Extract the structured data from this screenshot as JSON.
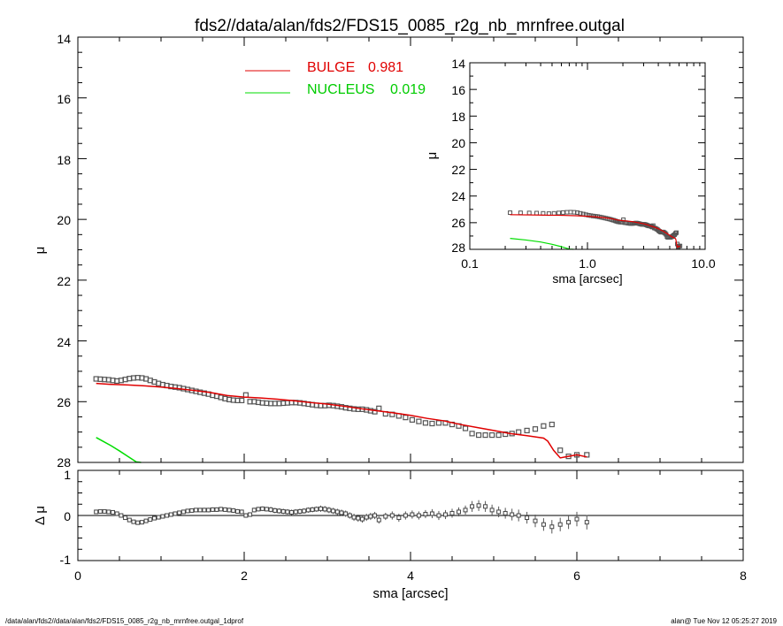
{
  "figure": {
    "title": "fds2//data/alan/fds2/FDS15_0085_r2g_nb_mrnfree.outgal",
    "footer_left": "/data/alan/fds2//data/alan/fds2/FDS15_0085_r2g_nb_mrnfree.outgal_1dprof",
    "footer_right": "alan@  Tue Nov 12 05:25:27 2019"
  },
  "colors": {
    "bulge": "#e00000",
    "nucleus": "#00dd00",
    "data": "#555555",
    "axis": "#000000"
  },
  "chart_data": [
    {
      "id": "main",
      "type": "line",
      "xlabel": "sma [arcsec]",
      "ylabel": "μ",
      "xlim": [
        0,
        8
      ],
      "ylim": [
        28,
        14
      ],
      "xticks": [
        "0",
        "2",
        "4",
        "6",
        "8"
      ],
      "yticks": [
        "14",
        "16",
        "18",
        "20",
        "22",
        "24",
        "26",
        "28"
      ],
      "legend": [
        {
          "name": "BULGE",
          "value": "0.981",
          "color": "#e00000"
        },
        {
          "name": "NUCLEUS",
          "value": "0.019",
          "color": "#00dd00"
        }
      ],
      "legend_position": "top-center",
      "series": [
        {
          "name": "BULGE",
          "kind": "line",
          "color": "#e00000",
          "x": [
            0.22,
            0.4,
            0.6,
            0.8,
            1.0,
            1.2,
            1.4,
            1.6,
            1.8,
            2.0,
            2.2,
            2.4,
            2.6,
            2.8,
            3.0,
            3.2,
            3.4,
            3.6,
            3.8,
            4.0,
            4.2,
            4.4,
            4.6,
            4.8,
            5.0,
            5.2,
            5.4,
            5.6,
            5.65,
            5.72,
            5.8,
            5.9,
            6.0,
            6.12
          ],
          "y": [
            25.4,
            25.43,
            25.45,
            25.48,
            25.52,
            25.57,
            25.63,
            25.7,
            25.8,
            25.85,
            25.88,
            25.92,
            25.97,
            26.03,
            26.08,
            26.15,
            26.23,
            26.3,
            26.37,
            26.45,
            26.55,
            26.63,
            26.75,
            26.85,
            26.95,
            27.05,
            27.12,
            27.2,
            27.3,
            27.6,
            27.85,
            27.8,
            27.75,
            27.82
          ]
        },
        {
          "name": "NUCLEUS",
          "kind": "line",
          "color": "#00dd00",
          "x": [
            0.22,
            0.3,
            0.4,
            0.5,
            0.6,
            0.7,
            0.76
          ],
          "y": [
            27.18,
            27.3,
            27.45,
            27.62,
            27.8,
            27.98,
            28.05
          ]
        },
        {
          "name": "data",
          "kind": "points",
          "color": "#555555",
          "x": [
            0.22,
            0.27,
            0.32,
            0.37,
            0.42,
            0.47,
            0.52,
            0.57,
            0.62,
            0.67,
            0.72,
            0.77,
            0.82,
            0.87,
            0.92,
            0.97,
            1.02,
            1.07,
            1.12,
            1.17,
            1.22,
            1.27,
            1.32,
            1.37,
            1.42,
            1.47,
            1.52,
            1.57,
            1.62,
            1.67,
            1.72,
            1.77,
            1.82,
            1.87,
            1.92,
            1.97,
            2.02,
            2.07,
            2.12,
            2.17,
            2.22,
            2.27,
            2.32,
            2.37,
            2.42,
            2.47,
            2.52,
            2.57,
            2.62,
            2.67,
            2.72,
            2.77,
            2.82,
            2.87,
            2.92,
            2.97,
            3.02,
            3.07,
            3.12,
            3.17,
            3.22,
            3.27,
            3.32,
            3.37,
            3.42,
            3.47,
            3.52,
            3.57,
            3.62,
            3.7,
            3.78,
            3.86,
            3.94,
            4.02,
            4.1,
            4.18,
            4.26,
            4.34,
            4.42,
            4.5,
            4.58,
            4.66,
            4.74,
            4.82,
            4.9,
            4.98,
            5.06,
            5.14,
            5.22,
            5.3,
            5.4,
            5.5,
            5.6,
            5.7,
            5.8,
            5.9,
            6.0,
            6.12
          ],
          "y": [
            25.25,
            25.26,
            25.27,
            25.28,
            25.3,
            25.32,
            25.3,
            25.27,
            25.24,
            25.22,
            25.21,
            25.22,
            25.25,
            25.3,
            25.35,
            25.4,
            25.44,
            25.47,
            25.5,
            25.52,
            25.54,
            25.57,
            25.6,
            25.63,
            25.66,
            25.69,
            25.72,
            25.75,
            25.79,
            25.82,
            25.86,
            25.9,
            25.93,
            25.95,
            25.96,
            25.96,
            25.78,
            26.0,
            26.0,
            26.02,
            26.04,
            26.05,
            26.06,
            26.06,
            26.06,
            26.05,
            26.04,
            26.03,
            26.03,
            26.04,
            26.06,
            26.08,
            26.1,
            26.12,
            26.13,
            26.13,
            26.12,
            26.13,
            26.15,
            26.17,
            26.2,
            26.22,
            26.24,
            26.25,
            26.25,
            26.27,
            26.3,
            26.33,
            26.22,
            26.4,
            26.42,
            26.47,
            26.52,
            26.6,
            26.65,
            26.7,
            26.72,
            26.7,
            26.7,
            26.75,
            26.8,
            26.88,
            27.05,
            27.1,
            27.1,
            27.1,
            27.1,
            27.07,
            27.05,
            27.0,
            26.95,
            26.9,
            26.8,
            26.75,
            27.6,
            27.8,
            27.75,
            27.75
          ]
        }
      ]
    },
    {
      "id": "inset",
      "type": "line",
      "xscale": "log",
      "xlabel": "sma [arcsec]",
      "ylabel": "μ",
      "xlim": [
        0.1,
        10
      ],
      "ylim": [
        28,
        14
      ],
      "xticks": [
        "0.1",
        "1.0",
        "10.0"
      ],
      "yticks": [
        "14",
        "16",
        "18",
        "20",
        "22",
        "24",
        "26",
        "28"
      ]
    },
    {
      "id": "residual",
      "type": "scatter",
      "xlabel": "sma [arcsec]",
      "ylabel": "Δ μ",
      "xlim": [
        0,
        8
      ],
      "ylim": [
        -1,
        1
      ],
      "xticks": [
        "0",
        "2",
        "4",
        "6",
        "8"
      ],
      "yticks": [
        "-1",
        "0",
        "1"
      ],
      "zero_line": 0,
      "x": [
        0.22,
        0.27,
        0.32,
        0.37,
        0.42,
        0.47,
        0.52,
        0.57,
        0.62,
        0.67,
        0.72,
        0.77,
        0.82,
        0.87,
        0.92,
        0.97,
        1.02,
        1.07,
        1.12,
        1.17,
        1.22,
        1.27,
        1.32,
        1.37,
        1.42,
        1.47,
        1.52,
        1.57,
        1.62,
        1.67,
        1.72,
        1.77,
        1.82,
        1.87,
        1.92,
        1.97,
        2.02,
        2.07,
        2.12,
        2.17,
        2.22,
        2.27,
        2.32,
        2.37,
        2.42,
        2.47,
        2.52,
        2.57,
        2.62,
        2.67,
        2.72,
        2.77,
        2.82,
        2.87,
        2.92,
        2.97,
        3.02,
        3.07,
        3.12,
        3.17,
        3.22,
        3.27,
        3.32,
        3.37,
        3.42,
        3.47,
        3.52,
        3.57,
        3.62,
        3.7,
        3.78,
        3.86,
        3.94,
        4.02,
        4.1,
        4.18,
        4.26,
        4.34,
        4.42,
        4.5,
        4.58,
        4.66,
        4.74,
        4.82,
        4.9,
        4.98,
        5.06,
        5.14,
        5.22,
        5.3,
        5.4,
        5.5,
        5.6,
        5.7,
        5.8,
        5.9,
        6.0,
        6.12
      ],
      "y": [
        0.08,
        0.09,
        0.09,
        0.08,
        0.07,
        0.04,
        0.0,
        -0.05,
        -0.1,
        -0.14,
        -0.16,
        -0.15,
        -0.12,
        -0.09,
        -0.06,
        -0.04,
        -0.02,
        0.0,
        0.02,
        0.04,
        0.06,
        0.08,
        0.1,
        0.11,
        0.12,
        0.12,
        0.12,
        0.12,
        0.13,
        0.13,
        0.14,
        0.13,
        0.12,
        0.11,
        0.09,
        0.08,
        0.0,
        0.02,
        0.12,
        0.14,
        0.15,
        0.14,
        0.13,
        0.11,
        0.1,
        0.09,
        0.08,
        0.07,
        0.08,
        0.09,
        0.1,
        0.12,
        0.13,
        0.14,
        0.15,
        0.14,
        0.12,
        0.1,
        0.08,
        0.06,
        0.04,
        0.0,
        -0.04,
        -0.06,
        -0.08,
        -0.04,
        -0.02,
        0.0,
        -0.1,
        -0.02,
        0.0,
        -0.05,
        0.0,
        0.02,
        0.0,
        0.03,
        0.04,
        0.0,
        0.02,
        0.05,
        0.08,
        0.12,
        0.2,
        0.22,
        0.2,
        0.12,
        0.08,
        0.05,
        0.02,
        0.0,
        -0.05,
        -0.12,
        -0.2,
        -0.25,
        -0.2,
        -0.15,
        -0.08,
        -0.15
      ],
      "err": [
        0.03,
        0.03,
        0.03,
        0.03,
        0.03,
        0.03,
        0.03,
        0.03,
        0.03,
        0.03,
        0.03,
        0.03,
        0.03,
        0.03,
        0.03,
        0.03,
        0.04,
        0.04,
        0.04,
        0.04,
        0.04,
        0.04,
        0.04,
        0.04,
        0.04,
        0.04,
        0.05,
        0.05,
        0.05,
        0.05,
        0.05,
        0.05,
        0.05,
        0.05,
        0.05,
        0.05,
        0.05,
        0.05,
        0.05,
        0.05,
        0.05,
        0.05,
        0.06,
        0.06,
        0.06,
        0.06,
        0.06,
        0.06,
        0.06,
        0.06,
        0.06,
        0.06,
        0.06,
        0.06,
        0.07,
        0.07,
        0.07,
        0.07,
        0.07,
        0.07,
        0.07,
        0.07,
        0.08,
        0.08,
        0.08,
        0.08,
        0.08,
        0.08,
        0.08,
        0.08,
        0.09,
        0.09,
        0.09,
        0.09,
        0.09,
        0.09,
        0.1,
        0.1,
        0.1,
        0.1,
        0.1,
        0.1,
        0.12,
        0.12,
        0.12,
        0.12,
        0.12,
        0.12,
        0.13,
        0.13,
        0.13,
        0.14,
        0.14,
        0.15,
        0.15,
        0.15,
        0.16,
        0.16
      ]
    }
  ]
}
